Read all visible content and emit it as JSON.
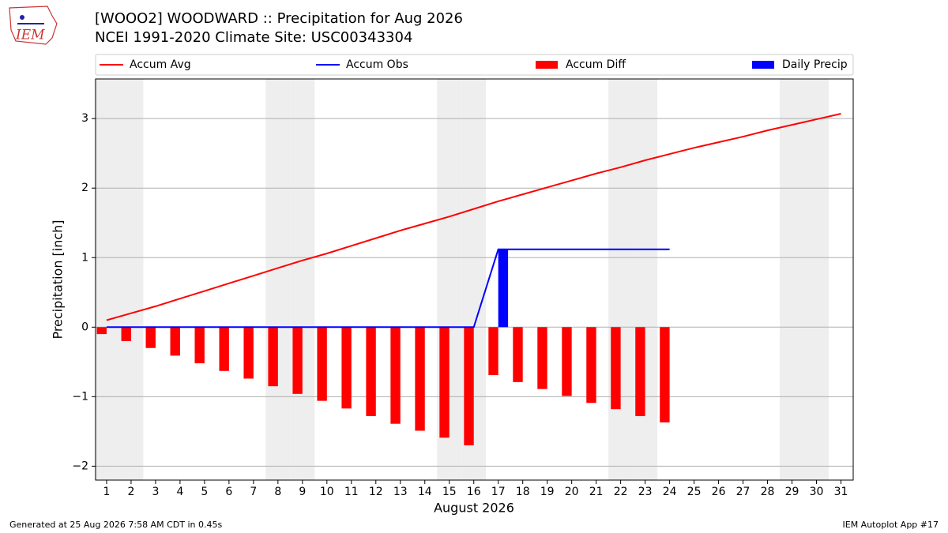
{
  "logo_text": "IEM",
  "chart_data": {
    "type": "combo",
    "title": "[WOOO2] WOODWARD :: Precipitation for Aug 2026",
    "subtitle": "NCEI 1991-2020 Climate Site: USC00343304",
    "x_label": "August 2026",
    "y_label": "Precipitation [inch]",
    "x": [
      1,
      2,
      3,
      4,
      5,
      6,
      7,
      8,
      9,
      10,
      11,
      12,
      13,
      14,
      15,
      16,
      17,
      18,
      19,
      20,
      21,
      22,
      23,
      24,
      25,
      26,
      27,
      28,
      29,
      30,
      31
    ],
    "xticks": [
      1,
      2,
      3,
      4,
      5,
      6,
      7,
      8,
      9,
      10,
      11,
      12,
      13,
      14,
      15,
      16,
      17,
      18,
      19,
      20,
      21,
      22,
      23,
      24,
      25,
      26,
      27,
      28,
      29,
      30,
      31
    ],
    "xlim": [
      0.55,
      31.5
    ],
    "ylim": [
      -2.2,
      3.57
    ],
    "yticks": [
      {
        "value": -2,
        "label": "−2"
      },
      {
        "value": -1,
        "label": "−1"
      },
      0,
      1,
      2,
      3
    ],
    "grid": true,
    "series": [
      {
        "name": "Accum Avg",
        "type": "line",
        "color": "#ff0000",
        "values": [
          0.1,
          0.2,
          0.3,
          0.41,
          0.52,
          0.63,
          0.74,
          0.85,
          0.96,
          1.06,
          1.17,
          1.28,
          1.39,
          1.49,
          1.59,
          1.7,
          1.81,
          1.91,
          2.01,
          2.11,
          2.21,
          2.3,
          2.4,
          2.49,
          2.58,
          2.66,
          2.74,
          2.83,
          2.91,
          2.99,
          3.07
        ]
      },
      {
        "name": "Accum Obs",
        "type": "line",
        "color": "#0000ff",
        "values": [
          0,
          0,
          0,
          0,
          0,
          0,
          0,
          0,
          0,
          0,
          0,
          0,
          0,
          0,
          0,
          0,
          1.12,
          1.12,
          1.12,
          1.12,
          1.12,
          1.12,
          1.12,
          1.12,
          null,
          null,
          null,
          null,
          null,
          null,
          null
        ]
      },
      {
        "name": "Accum Diff",
        "type": "bar",
        "side": "left",
        "color": "#ff0000",
        "values": [
          -0.1,
          -0.2,
          -0.3,
          -0.41,
          -0.52,
          -0.63,
          -0.74,
          -0.85,
          -0.96,
          -1.06,
          -1.17,
          -1.28,
          -1.39,
          -1.49,
          -1.59,
          -1.7,
          -0.69,
          -0.79,
          -0.89,
          -0.99,
          -1.09,
          -1.18,
          -1.28,
          -1.37,
          null,
          null,
          null,
          null,
          null,
          null,
          null
        ]
      },
      {
        "name": "Daily Precip",
        "type": "bar",
        "side": "right",
        "color": "#0000ff",
        "values": [
          0,
          0,
          0,
          0,
          0,
          0,
          0,
          0,
          0,
          0,
          0,
          0,
          0,
          0,
          0,
          0,
          1.12,
          0,
          0,
          0,
          0,
          0,
          0,
          0,
          null,
          null,
          null,
          null,
          null,
          null,
          null
        ]
      }
    ],
    "footer_left": "Generated at 25 Aug 2026 7:58 AM CDT in 0.45s",
    "footer_right": "IEM Autoplot App #17"
  }
}
